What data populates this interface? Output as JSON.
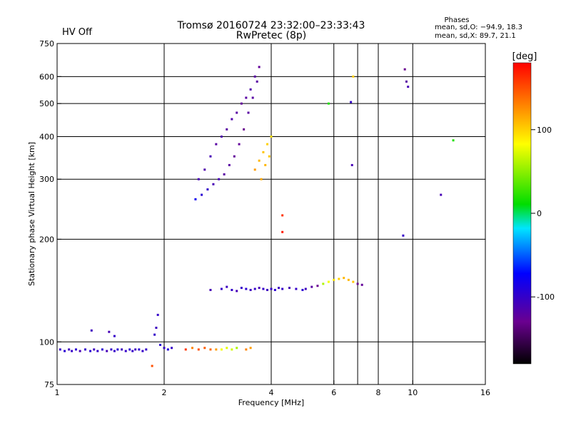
{
  "status": {
    "hv_label": "HV Off",
    "hv_color": "#cc0000"
  },
  "header": {
    "title": "Tromsø 20160724 23:32:00–23:33:43",
    "subtitle": "RwPretec (8p)"
  },
  "stats": {
    "heading": "Phases",
    "line_o": "mean, sd,O: −94.9, 18.3",
    "line_x": "mean, sd,X: 89.7, 21.1"
  },
  "chart_data": {
    "type": "scatter",
    "xlabel": "Frequency [MHz]",
    "ylabel": "Stationary phase Virtual Height [km]",
    "x_scale": "log",
    "y_scale": "log",
    "xlim": [
      1,
      16
    ],
    "ylim": [
      75,
      750
    ],
    "x_ticks": [
      1,
      2,
      4,
      6,
      8,
      10,
      16
    ],
    "y_ticks": [
      75,
      100,
      200,
      300,
      400,
      500,
      600,
      750
    ],
    "v_gridlines": [
      2,
      4,
      6,
      7,
      8,
      10
    ],
    "h_gridlines": [
      100,
      200,
      300,
      400,
      500,
      600
    ],
    "grid": true,
    "colorbar": {
      "label": "[deg]",
      "range": [
        -180,
        180
      ],
      "ticks": [
        100,
        0,
        -100
      ],
      "stops": [
        "#000000",
        "#6a0090",
        "#0000ff",
        "#00e5ff",
        "#00dd00",
        "#ffff00",
        "#ff8c00",
        "#ff0000"
      ]
    },
    "series": [
      {
        "x": [
          1.02,
          1.05,
          1.08,
          1.1,
          1.13,
          1.16,
          1.2,
          1.24,
          1.27,
          1.3,
          1.34,
          1.38,
          1.42,
          1.45,
          1.48,
          1.52,
          1.56,
          1.6,
          1.63,
          1.66,
          1.7,
          1.74,
          1.78
        ],
        "y": [
          95,
          94,
          95,
          94,
          95,
          94,
          95,
          94,
          95,
          94,
          95,
          94,
          95,
          94,
          95,
          95,
          94,
          95,
          94,
          95,
          95,
          94,
          95
        ],
        "phase": [
          -100,
          -95,
          -105,
          -100,
          -95,
          -110,
          -100,
          -95,
          -105,
          -100,
          -95,
          -110,
          -100,
          -100,
          -95,
          -105,
          -100,
          -95,
          -100,
          -105,
          -95,
          -100,
          -100
        ]
      },
      {
        "x": [
          1.25,
          1.4,
          1.45,
          1.88,
          1.9,
          1.92,
          1.95,
          2.0,
          2.05,
          2.1
        ],
        "y": [
          108,
          107,
          104,
          105,
          110,
          120,
          98,
          96,
          95,
          96
        ],
        "phase": [
          -105,
          -110,
          -100,
          -100,
          -105,
          -100,
          -95,
          -100,
          -90,
          -100
        ]
      },
      {
        "x": [
          1.85,
          2.3,
          2.4,
          2.5,
          2.6,
          2.7,
          2.8,
          2.9,
          3.0,
          3.1,
          3.2,
          3.4,
          3.5
        ],
        "y": [
          85,
          95,
          96,
          95,
          96,
          95,
          95,
          95,
          96,
          95,
          96,
          95,
          96
        ],
        "phase": [
          150,
          160,
          130,
          150,
          145,
          140,
          120,
          80,
          75,
          70,
          60,
          130,
          120
        ]
      },
      {
        "x": [
          2.7,
          2.9,
          3.0,
          3.1,
          3.2,
          3.3,
          3.4,
          3.5,
          3.6,
          3.7,
          3.8,
          3.9,
          4.0,
          4.1,
          4.2,
          4.3,
          4.5,
          4.7,
          4.9,
          5.0
        ],
        "y": [
          142,
          143,
          145,
          142,
          141,
          144,
          143,
          142,
          143,
          144,
          143,
          142,
          143,
          142,
          144,
          143,
          144,
          143,
          142,
          143
        ],
        "phase": [
          -110,
          -100,
          -105,
          -100,
          -110,
          -100,
          -95,
          -105,
          -100,
          -110,
          -100,
          -105,
          -100,
          -95,
          -105,
          -100,
          -110,
          -100,
          -95,
          -105
        ]
      },
      {
        "x": [
          5.2,
          5.4,
          5.6,
          5.8,
          6.0,
          6.2,
          6.4,
          6.6,
          6.8,
          7.0,
          7.2
        ],
        "y": [
          145,
          146,
          148,
          150,
          152,
          153,
          154,
          152,
          150,
          148,
          147
        ],
        "phase": [
          -120,
          -130,
          60,
          80,
          90,
          100,
          110,
          110,
          105,
          -130,
          -125
        ]
      },
      {
        "x": [
          2.45,
          2.55,
          2.65,
          2.75,
          2.85,
          2.95,
          3.05,
          3.15,
          3.25,
          3.35,
          3.45,
          3.55,
          3.65,
          3.7
        ],
        "y": [
          262,
          270,
          280,
          290,
          300,
          310,
          330,
          350,
          380,
          420,
          470,
          520,
          580,
          640
        ],
        "phase": [
          -80,
          -95,
          -100,
          -110,
          -110,
          -120,
          -120,
          -125,
          -125,
          -130,
          -120,
          -120,
          -120,
          -125
        ]
      },
      {
        "x": [
          2.5,
          2.6,
          2.7,
          2.8,
          2.9,
          3.0,
          3.1,
          3.2,
          3.3,
          3.4,
          3.5,
          3.6
        ],
        "y": [
          300,
          320,
          350,
          380,
          400,
          420,
          450,
          470,
          500,
          520,
          550,
          600
        ],
        "phase": [
          -110,
          -115,
          -110,
          -120,
          -115,
          -120,
          -115,
          -120,
          -125,
          -120,
          -115,
          -120
        ]
      },
      {
        "x": [
          3.6,
          3.7,
          3.8,
          3.9,
          4.0,
          3.75,
          3.85,
          3.95
        ],
        "y": [
          320,
          340,
          360,
          380,
          400,
          300,
          330,
          350
        ],
        "phase": [
          120,
          110,
          105,
          100,
          95,
          115,
          110,
          105
        ]
      },
      {
        "x": [
          5.8,
          6.8,
          6.7,
          6.75,
          4.3,
          4.3,
          9.5,
          9.6,
          9.7,
          9.4,
          12,
          13
        ],
        "y": [
          500,
          600,
          505,
          330,
          235,
          210,
          630,
          580,
          560,
          205,
          270,
          390
        ],
        "phase": [
          20,
          100,
          -100,
          -110,
          160,
          170,
          -130,
          -120,
          -110,
          -100,
          -110,
          20
        ]
      }
    ]
  }
}
